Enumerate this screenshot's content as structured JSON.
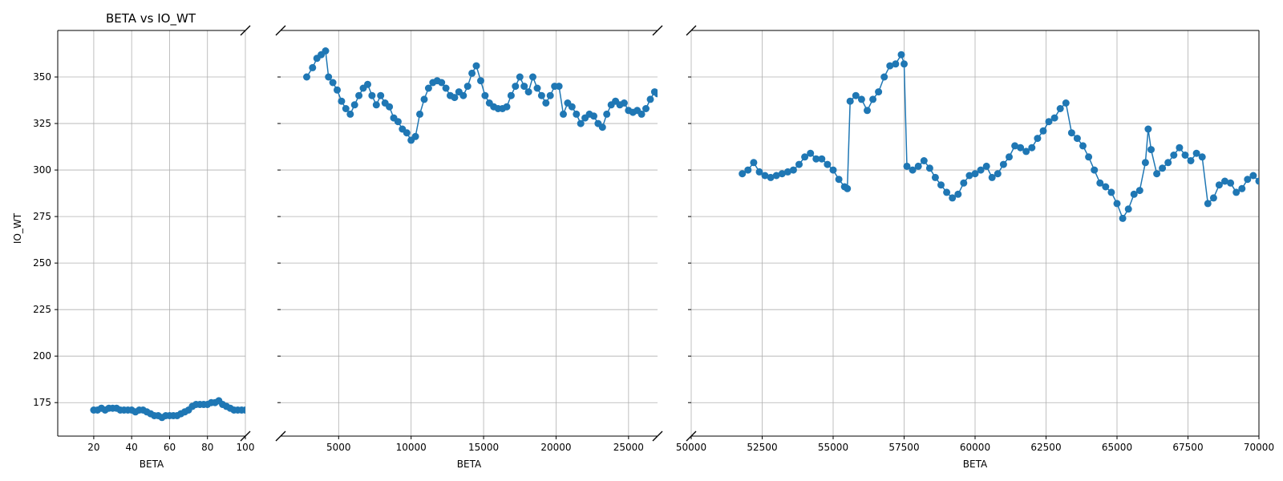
{
  "chart_data": {
    "type": "line",
    "title": "BETA vs IO_WT",
    "xlabel": "BETA",
    "ylabel": "IO_WT",
    "ylim": [
      157,
      375
    ],
    "yticks": [
      175,
      200,
      225,
      250,
      275,
      300,
      325,
      350
    ],
    "grid": true,
    "broken_x_axis": true,
    "color": "#1f77b4",
    "marker": "circle",
    "panels": [
      {
        "xlim": [
          1,
          100
        ],
        "xticks": [
          20,
          40,
          60,
          80,
          100
        ],
        "x": [
          20,
          22,
          24,
          26,
          28,
          30,
          32,
          34,
          36,
          38,
          40,
          42,
          44,
          46,
          48,
          50,
          52,
          54,
          56,
          58,
          60,
          62,
          64,
          66,
          68,
          70,
          72,
          74,
          76,
          78,
          80,
          82,
          84,
          86,
          88,
          90,
          92,
          94,
          96,
          98,
          100
        ],
        "y": [
          171,
          171,
          172,
          171,
          172,
          172,
          172,
          171,
          171,
          171,
          171,
          170,
          171,
          171,
          170,
          169,
          168,
          168,
          167,
          168,
          168,
          168,
          168,
          169,
          170,
          171,
          173,
          174,
          174,
          174,
          174,
          175,
          175,
          176,
          174,
          173,
          172,
          171,
          171,
          171,
          171
        ]
      },
      {
        "xlim": [
          1000,
          27000
        ],
        "xticks": [
          5000,
          10000,
          15000,
          20000,
          25000
        ],
        "x": [
          2800,
          3200,
          3500,
          3800,
          4100,
          4300,
          4600,
          4900,
          5200,
          5500,
          5800,
          6100,
          6400,
          6700,
          7000,
          7300,
          7600,
          7900,
          8200,
          8500,
          8800,
          9100,
          9400,
          9700,
          10000,
          10300,
          10600,
          10900,
          11200,
          11500,
          11800,
          12100,
          12400,
          12700,
          13000,
          13300,
          13600,
          13900,
          14200,
          14500,
          14800,
          15100,
          15400,
          15700,
          16000,
          16300,
          16600,
          16900,
          17200,
          17500,
          17800,
          18100,
          18400,
          18700,
          19000,
          19300,
          19600,
          19900,
          20200,
          20500,
          20800,
          21100,
          21400,
          21700,
          22000,
          22300,
          22600,
          22900,
          23200,
          23500,
          23800,
          24100,
          24400,
          24700,
          25000,
          25300,
          25600,
          25900,
          26200,
          26500,
          26800,
          27000
        ],
        "y": [
          350,
          355,
          360,
          362,
          364,
          350,
          347,
          343,
          337,
          333,
          330,
          335,
          340,
          344,
          346,
          340,
          335,
          340,
          336,
          334,
          328,
          326,
          322,
          320,
          316,
          318,
          330,
          338,
          344,
          347,
          348,
          347,
          344,
          340,
          339,
          342,
          340,
          345,
          352,
          356,
          348,
          340,
          336,
          334,
          333,
          333,
          334,
          340,
          345,
          350,
          345,
          342,
          350,
          344,
          340,
          336,
          340,
          345,
          345,
          330,
          336,
          334,
          330,
          325,
          328,
          330,
          329,
          325,
          323,
          330,
          335,
          337,
          335,
          336,
          332,
          331,
          332,
          330,
          333,
          338,
          342,
          341
        ]
      },
      {
        "xlim": [
          50000,
          70000
        ],
        "xticks": [
          50000,
          52500,
          55000,
          57500,
          60000,
          62500,
          65000,
          67500,
          70000
        ],
        "x": [
          51800,
          52000,
          52200,
          52400,
          52600,
          52800,
          53000,
          53200,
          53400,
          53600,
          53800,
          54000,
          54200,
          54400,
          54600,
          54800,
          55000,
          55200,
          55400,
          55500,
          55600,
          55800,
          56000,
          56200,
          56400,
          56600,
          56800,
          57000,
          57200,
          57400,
          57500,
          57600,
          57800,
          58000,
          58200,
          58400,
          58600,
          58800,
          59000,
          59200,
          59400,
          59600,
          59800,
          60000,
          60200,
          60400,
          60600,
          60800,
          61000,
          61200,
          61400,
          61600,
          61800,
          62000,
          62200,
          62400,
          62600,
          62800,
          63000,
          63200,
          63400,
          63600,
          63800,
          64000,
          64200,
          64400,
          64600,
          64800,
          65000,
          65200,
          65400,
          65600,
          65800,
          66000,
          66100,
          66200,
          66400,
          66600,
          66800,
          67000,
          67200,
          67400,
          67600,
          67800,
          68000,
          68200,
          68400,
          68600,
          68800,
          69000,
          69200,
          69400,
          69600,
          69800,
          70000
        ],
        "y": [
          298,
          300,
          304,
          299,
          297,
          296,
          297,
          298,
          299,
          300,
          303,
          307,
          309,
          306,
          306,
          303,
          300,
          295,
          291,
          290,
          337,
          340,
          338,
          332,
          338,
          342,
          350,
          356,
          357,
          362,
          357,
          302,
          300,
          302,
          305,
          301,
          296,
          292,
          288,
          285,
          287,
          293,
          297,
          298,
          300,
          302,
          296,
          298,
          303,
          307,
          313,
          312,
          310,
          312,
          317,
          321,
          326,
          328,
          333,
          336,
          320,
          317,
          313,
          307,
          300,
          293,
          291,
          288,
          282,
          274,
          279,
          287,
          289,
          304,
          322,
          311,
          298,
          301,
          304,
          308,
          312,
          308,
          305,
          309,
          307,
          282,
          285,
          292,
          294,
          293,
          288,
          290,
          295,
          297,
          294
        ]
      }
    ]
  }
}
